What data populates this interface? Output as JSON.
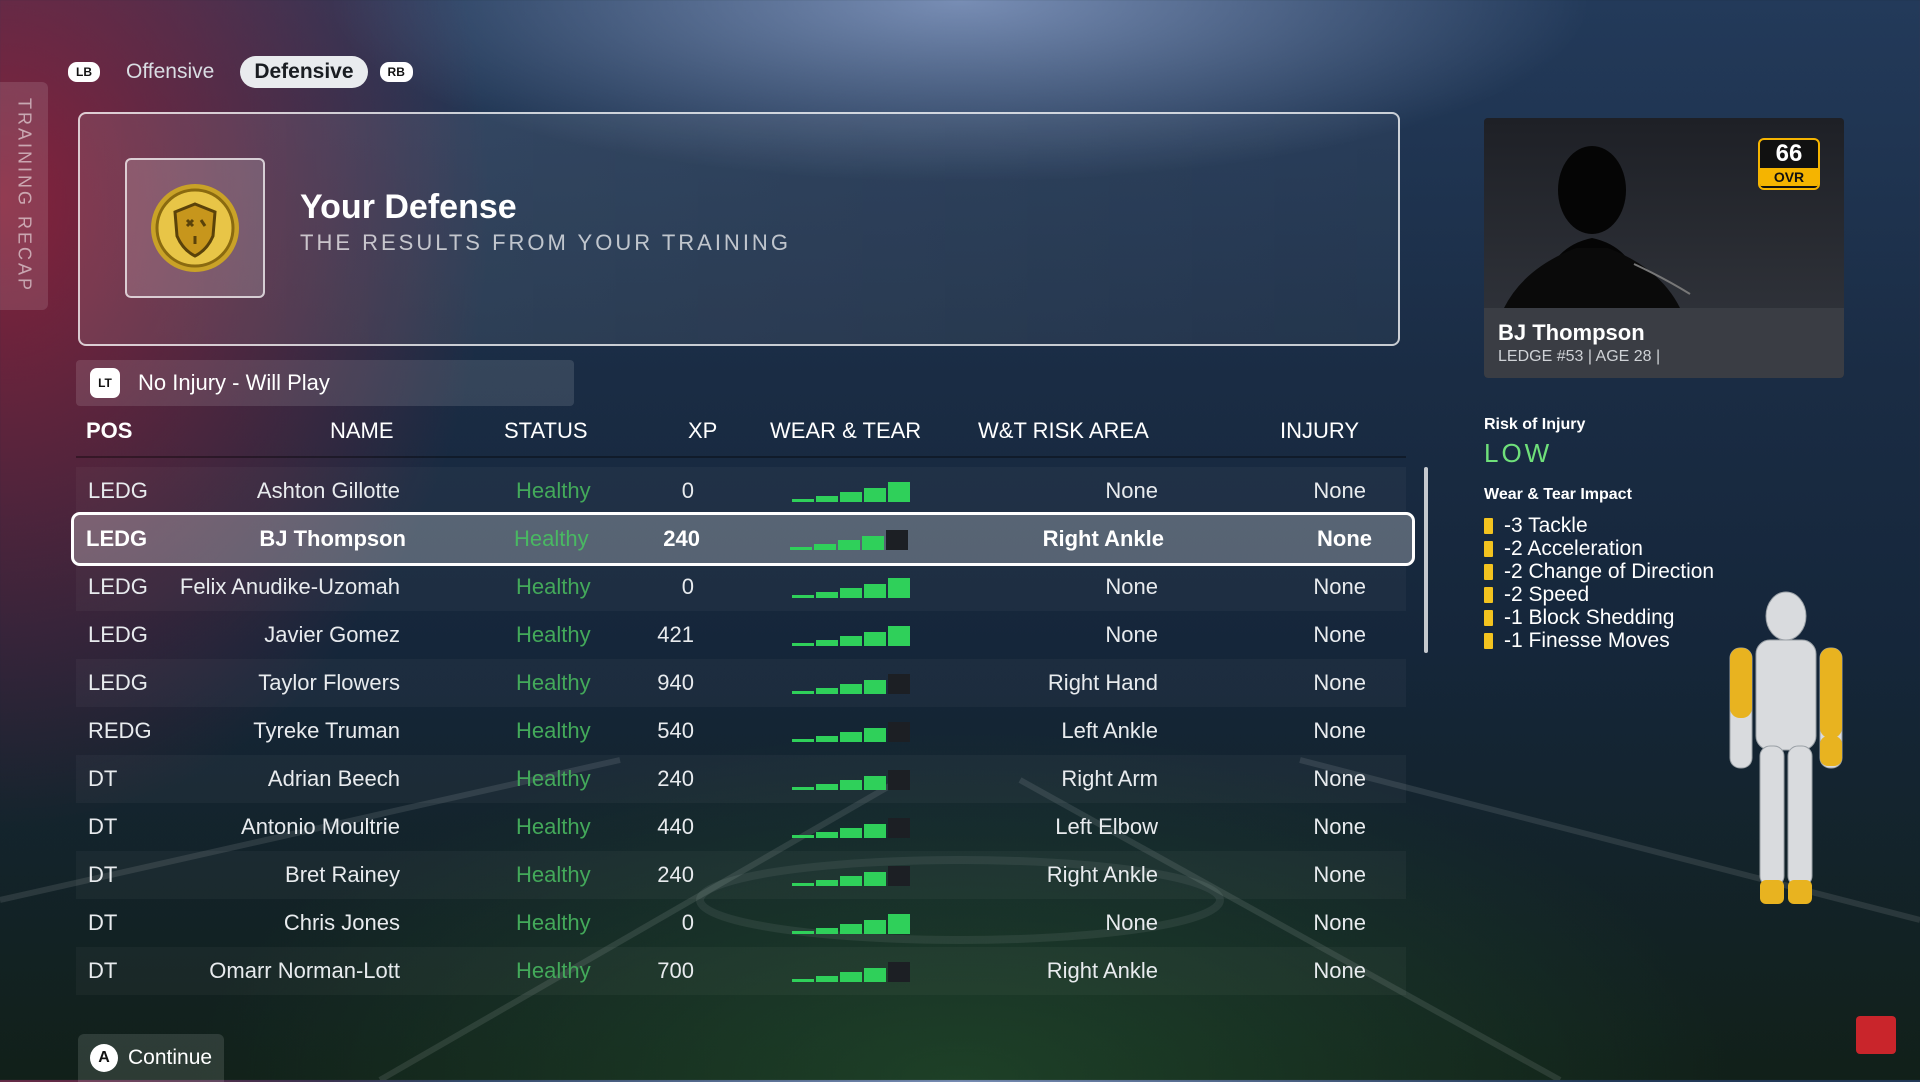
{
  "side_tab": {
    "label": "TRAINING RECAP"
  },
  "tabs": {
    "left_button": "LB",
    "right_button": "RB",
    "items": [
      "Offensive",
      "Defensive"
    ],
    "active": "Defensive"
  },
  "header": {
    "title": "Your Defense",
    "subtitle": "THE RESULTS FROM YOUR TRAINING",
    "icon": "defense-shield-badge-icon"
  },
  "filter": {
    "button": "LT",
    "label": "No Injury - Will Play"
  },
  "table": {
    "columns": {
      "pos": "POS",
      "name": "NAME",
      "status": "STATUS",
      "xp": "XP",
      "wear_tear": "WEAR & TEAR",
      "risk_area": "W&T RISK AREA",
      "injury": "INJURY"
    },
    "rows": [
      {
        "pos": "LEDG",
        "name": "Ashton Gillotte",
        "status": "Healthy",
        "xp": "0",
        "wear_tear_bars": 5,
        "risk_area": "None",
        "injury": "None"
      },
      {
        "pos": "LEDG",
        "name": "BJ Thompson",
        "status": "Healthy",
        "xp": "240",
        "wear_tear_bars": 4,
        "risk_area": "Right Ankle",
        "injury": "None",
        "selected": true
      },
      {
        "pos": "LEDG",
        "name": "Felix Anudike-Uzomah",
        "status": "Healthy",
        "xp": "0",
        "wear_tear_bars": 5,
        "risk_area": "None",
        "injury": "None"
      },
      {
        "pos": "LEDG",
        "name": "Javier Gomez",
        "status": "Healthy",
        "xp": "421",
        "wear_tear_bars": 5,
        "risk_area": "None",
        "injury": "None"
      },
      {
        "pos": "LEDG",
        "name": "Taylor Flowers",
        "status": "Healthy",
        "xp": "940",
        "wear_tear_bars": 4,
        "risk_area": "Right Hand",
        "injury": "None"
      },
      {
        "pos": "REDG",
        "name": "Tyreke Truman",
        "status": "Healthy",
        "xp": "540",
        "wear_tear_bars": 4,
        "risk_area": "Left Ankle",
        "injury": "None"
      },
      {
        "pos": "DT",
        "name": "Adrian Beech",
        "status": "Healthy",
        "xp": "240",
        "wear_tear_bars": 4,
        "risk_area": "Right Arm",
        "injury": "None"
      },
      {
        "pos": "DT",
        "name": "Antonio Moultrie",
        "status": "Healthy",
        "xp": "440",
        "wear_tear_bars": 4,
        "risk_area": "Left Elbow",
        "injury": "None"
      },
      {
        "pos": "DT",
        "name": "Bret Rainey",
        "status": "Healthy",
        "xp": "240",
        "wear_tear_bars": 4,
        "risk_area": "Right Ankle",
        "injury": "None"
      },
      {
        "pos": "DT",
        "name": "Chris Jones",
        "status": "Healthy",
        "xp": "0",
        "wear_tear_bars": 5,
        "risk_area": "None",
        "injury": "None"
      },
      {
        "pos": "DT",
        "name": "Omarr Norman-Lott",
        "status": "Healthy",
        "xp": "700",
        "wear_tear_bars": 4,
        "risk_area": "Right Ankle",
        "injury": "None"
      }
    ]
  },
  "player_card": {
    "name": "BJ Thompson",
    "meta": "LEDGE #53 | AGE 28 |",
    "ovr": "66",
    "ovr_label": "OVR"
  },
  "risk": {
    "title": "Risk of Injury",
    "value": "LOW"
  },
  "wear_tear_impact": {
    "title": "Wear & Tear Impact",
    "items": [
      "-3 Tackle",
      "-2 Acceleration",
      "-2 Change of Direction",
      "-2 Speed",
      "-1 Block Shedding",
      "-1 Finesse Moves"
    ]
  },
  "continue": {
    "button": "A",
    "label": "Continue"
  },
  "colors": {
    "healthy": "#43a95a",
    "risk_low": "#6fe07a",
    "ovr_accent": "#f5b400",
    "impact_bar": "#f3c31f",
    "wt_fill": "#2fd05a",
    "wt_empty": "#1c1f24"
  }
}
